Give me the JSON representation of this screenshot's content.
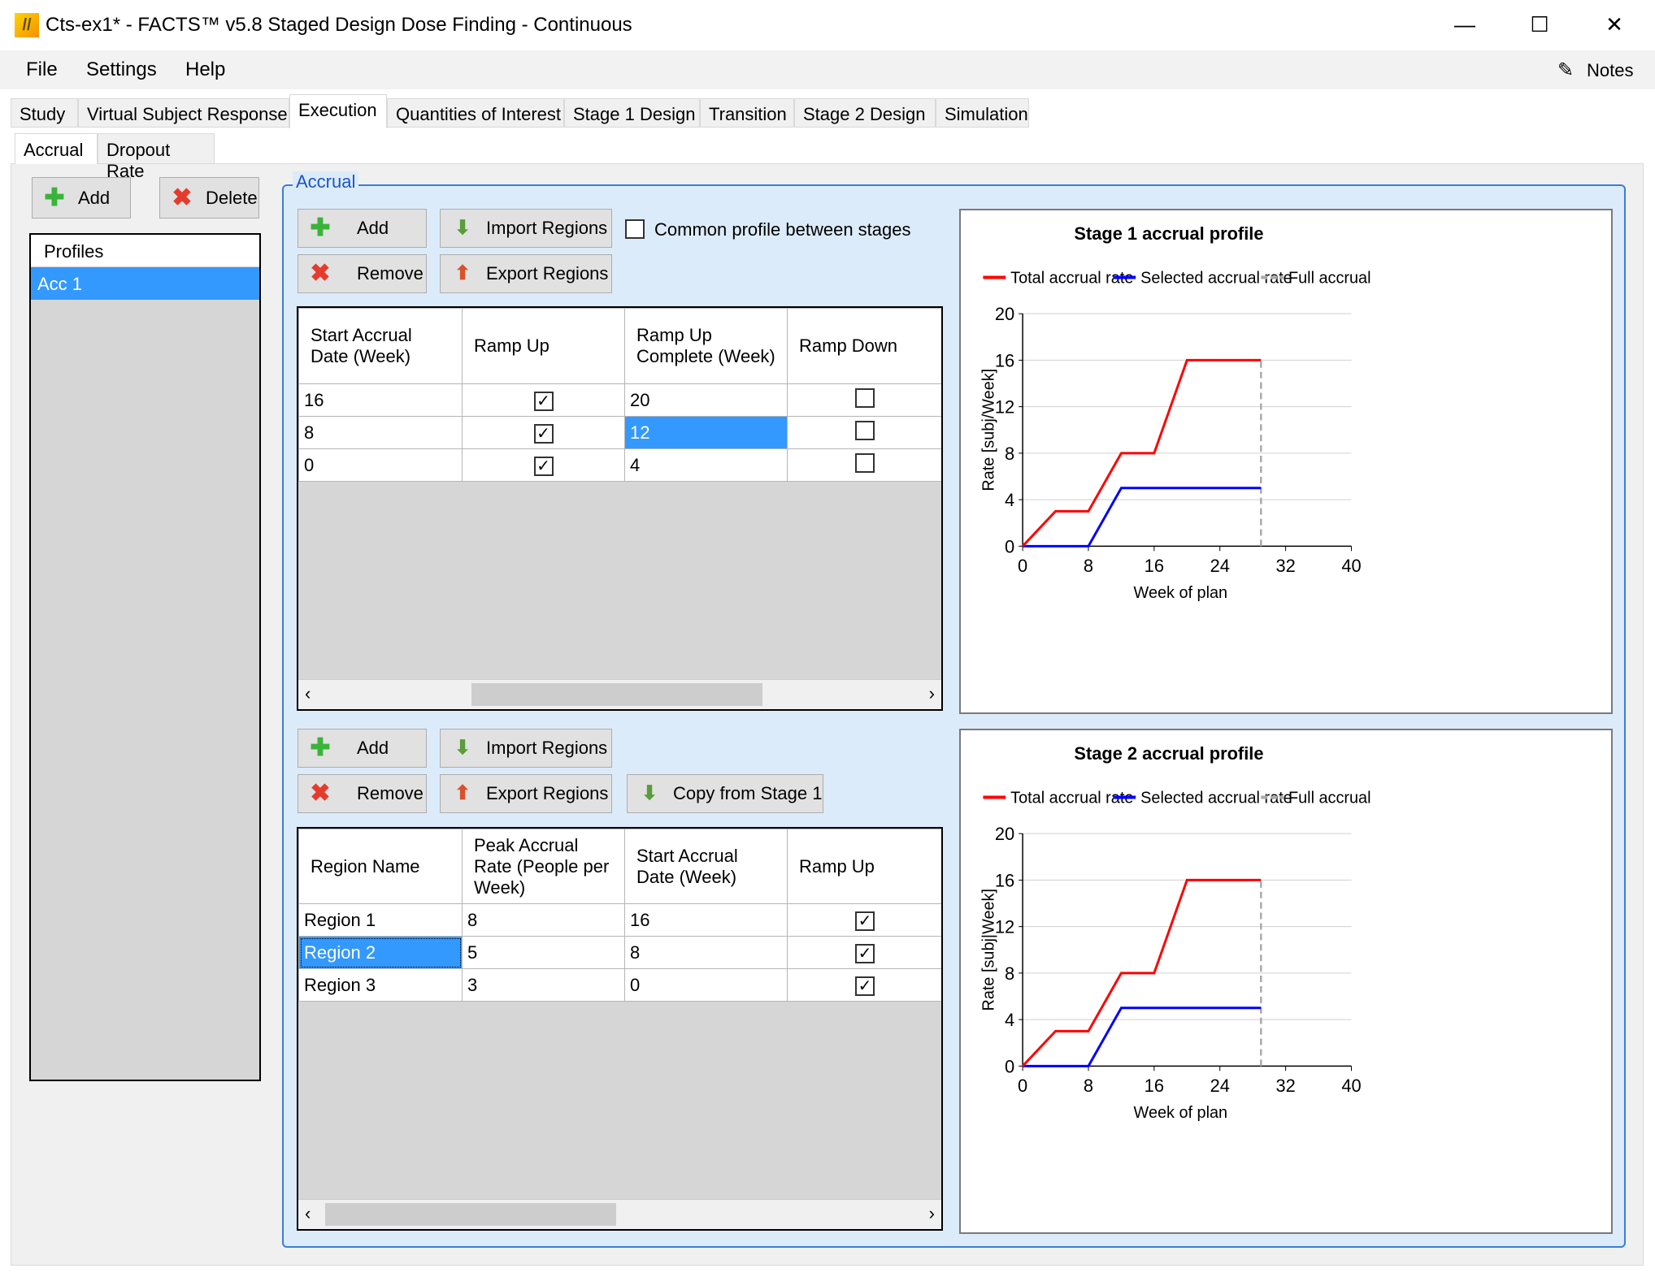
{
  "window": {
    "title": "Cts-ex1* - FACTS™ v5.8 Staged Design Dose Finding - Continuous",
    "minimize": "—",
    "maximize": "☐",
    "close": "✕"
  },
  "menu": [
    "File",
    "Settings",
    "Help"
  ],
  "notes_label": "Notes",
  "tabs": [
    "Study",
    "Virtual Subject Response",
    "Execution",
    "Quantities of Interest",
    "Stage 1 Design",
    "Transition",
    "Stage 2 Design",
    "Simulation"
  ],
  "subtabs": [
    "Accrual",
    "Dropout Rate"
  ],
  "profiles": {
    "add": "Add",
    "delete": "Delete",
    "header": "Profiles",
    "items": [
      "Acc 1"
    ]
  },
  "accrual": {
    "group_label": "Accrual",
    "stage1": {
      "add": "Add",
      "remove": "Remove",
      "import": "Import Regions",
      "export": "Export Regions",
      "common_label": "Common profile between stages",
      "common_checked": false,
      "columns": [
        "Start Accrual Date (Week)",
        "Ramp Up",
        "Ramp Up Complete (Week)",
        "Ramp Down"
      ],
      "rows": [
        {
          "start": "16",
          "ramp_up": true,
          "complete": "20",
          "ramp_down": false
        },
        {
          "start": "8",
          "ramp_up": true,
          "complete": "12",
          "ramp_down": false
        },
        {
          "start": "0",
          "ramp_up": true,
          "complete": "4",
          "ramp_down": false
        }
      ]
    },
    "stage2": {
      "add": "Add",
      "remove": "Remove",
      "import": "Import Regions",
      "export": "Export Regions",
      "copy": "Copy from Stage 1",
      "columns": [
        "Region Name",
        "Peak Accrual Rate (People per Week)",
        "Start Accrual Date (Week)",
        "Ramp Up"
      ],
      "rows": [
        {
          "name": "Region 1",
          "rate": "8",
          "start": "16",
          "ramp_up": true
        },
        {
          "name": "Region 2",
          "rate": "5",
          "start": "8",
          "ramp_up": true
        },
        {
          "name": "Region 3",
          "rate": "3",
          "start": "0",
          "ramp_up": true
        }
      ]
    }
  },
  "colors": {
    "total": "#ff0000",
    "selected": "#0000ff",
    "full": "#aaaaaa",
    "selection": "#3399ff"
  },
  "chart_data": [
    {
      "type": "line",
      "title": "Stage 1 accrual profile",
      "xlabel": "Week of plan",
      "ylabel": "Rate [subj/Week]",
      "xlim": [
        0,
        40
      ],
      "ylim": [
        0,
        20
      ],
      "xticks": [
        0,
        8,
        16,
        24,
        32,
        40
      ],
      "yticks": [
        0,
        4,
        8,
        12,
        16,
        20
      ],
      "grid": true,
      "legend": "top",
      "series": [
        {
          "name": "Total accrual rate",
          "x": [
            0,
            4,
            8,
            12,
            16,
            20,
            29
          ],
          "y": [
            0,
            3,
            3,
            8,
            8,
            16,
            16
          ]
        },
        {
          "name": "Selected accrual rate",
          "x": [
            0,
            8,
            12,
            29
          ],
          "y": [
            0,
            0,
            5,
            5
          ]
        },
        {
          "name": "Full accrual",
          "x": [
            29,
            29
          ],
          "y": [
            0,
            16
          ]
        }
      ]
    },
    {
      "type": "line",
      "title": "Stage 2 accrual profile",
      "xlabel": "Week of plan",
      "ylabel": "Rate [subj|Week]",
      "xlim": [
        0,
        40
      ],
      "ylim": [
        0,
        20
      ],
      "xticks": [
        0,
        8,
        16,
        24,
        32,
        40
      ],
      "yticks": [
        0,
        4,
        8,
        12,
        16,
        20
      ],
      "grid": true,
      "legend": "top",
      "series": [
        {
          "name": "Total accrual rate",
          "x": [
            0,
            4,
            8,
            12,
            16,
            20,
            29
          ],
          "y": [
            0,
            3,
            3,
            8,
            8,
            16,
            16
          ]
        },
        {
          "name": "Selected accrual rate",
          "x": [
            0,
            8,
            12,
            29
          ],
          "y": [
            0,
            0,
            5,
            5
          ]
        },
        {
          "name": "Full accrual",
          "x": [
            29,
            29
          ],
          "y": [
            0,
            16
          ]
        }
      ]
    }
  ]
}
